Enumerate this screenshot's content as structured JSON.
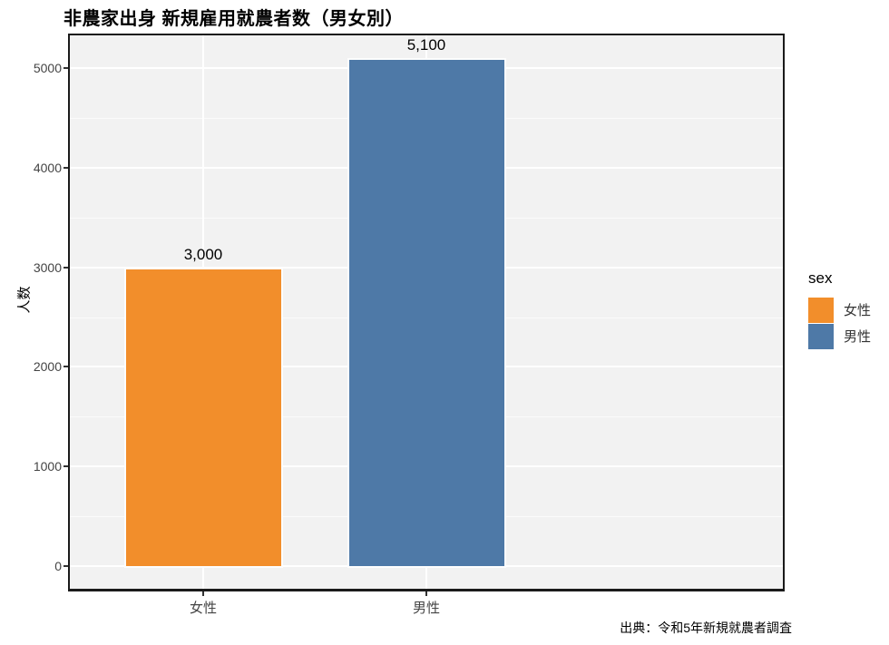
{
  "title": "非農家出身 新規雇用就農者数（男女別）",
  "chart_data": {
    "type": "bar",
    "title": "非農家出身 新規雇用就農者数（男女別）",
    "categories": [
      "女性",
      "男性"
    ],
    "values": [
      3000,
      5100
    ],
    "value_labels": [
      "3,000",
      "5,100"
    ],
    "bar_colors": [
      "#F28E2B",
      "#4E79A7"
    ],
    "xlabel": "",
    "ylabel": "人数",
    "ylim": [
      0,
      5346
    ],
    "yticks": [
      0,
      1000,
      2000,
      3000,
      4000,
      5000
    ],
    "yticks_minor": [
      500,
      1500,
      2500,
      3500,
      4500
    ],
    "grid": true,
    "panel_background": "#F2F2F2",
    "gridline_color": "#FFFFFF",
    "legend": {
      "title": "sex",
      "position": "right",
      "entries": [
        {
          "label": "女性",
          "color": "#F28E2B"
        },
        {
          "label": "男性",
          "color": "#4E79A7"
        }
      ]
    },
    "source_note": "出典：令和5年新規就農者調査"
  }
}
